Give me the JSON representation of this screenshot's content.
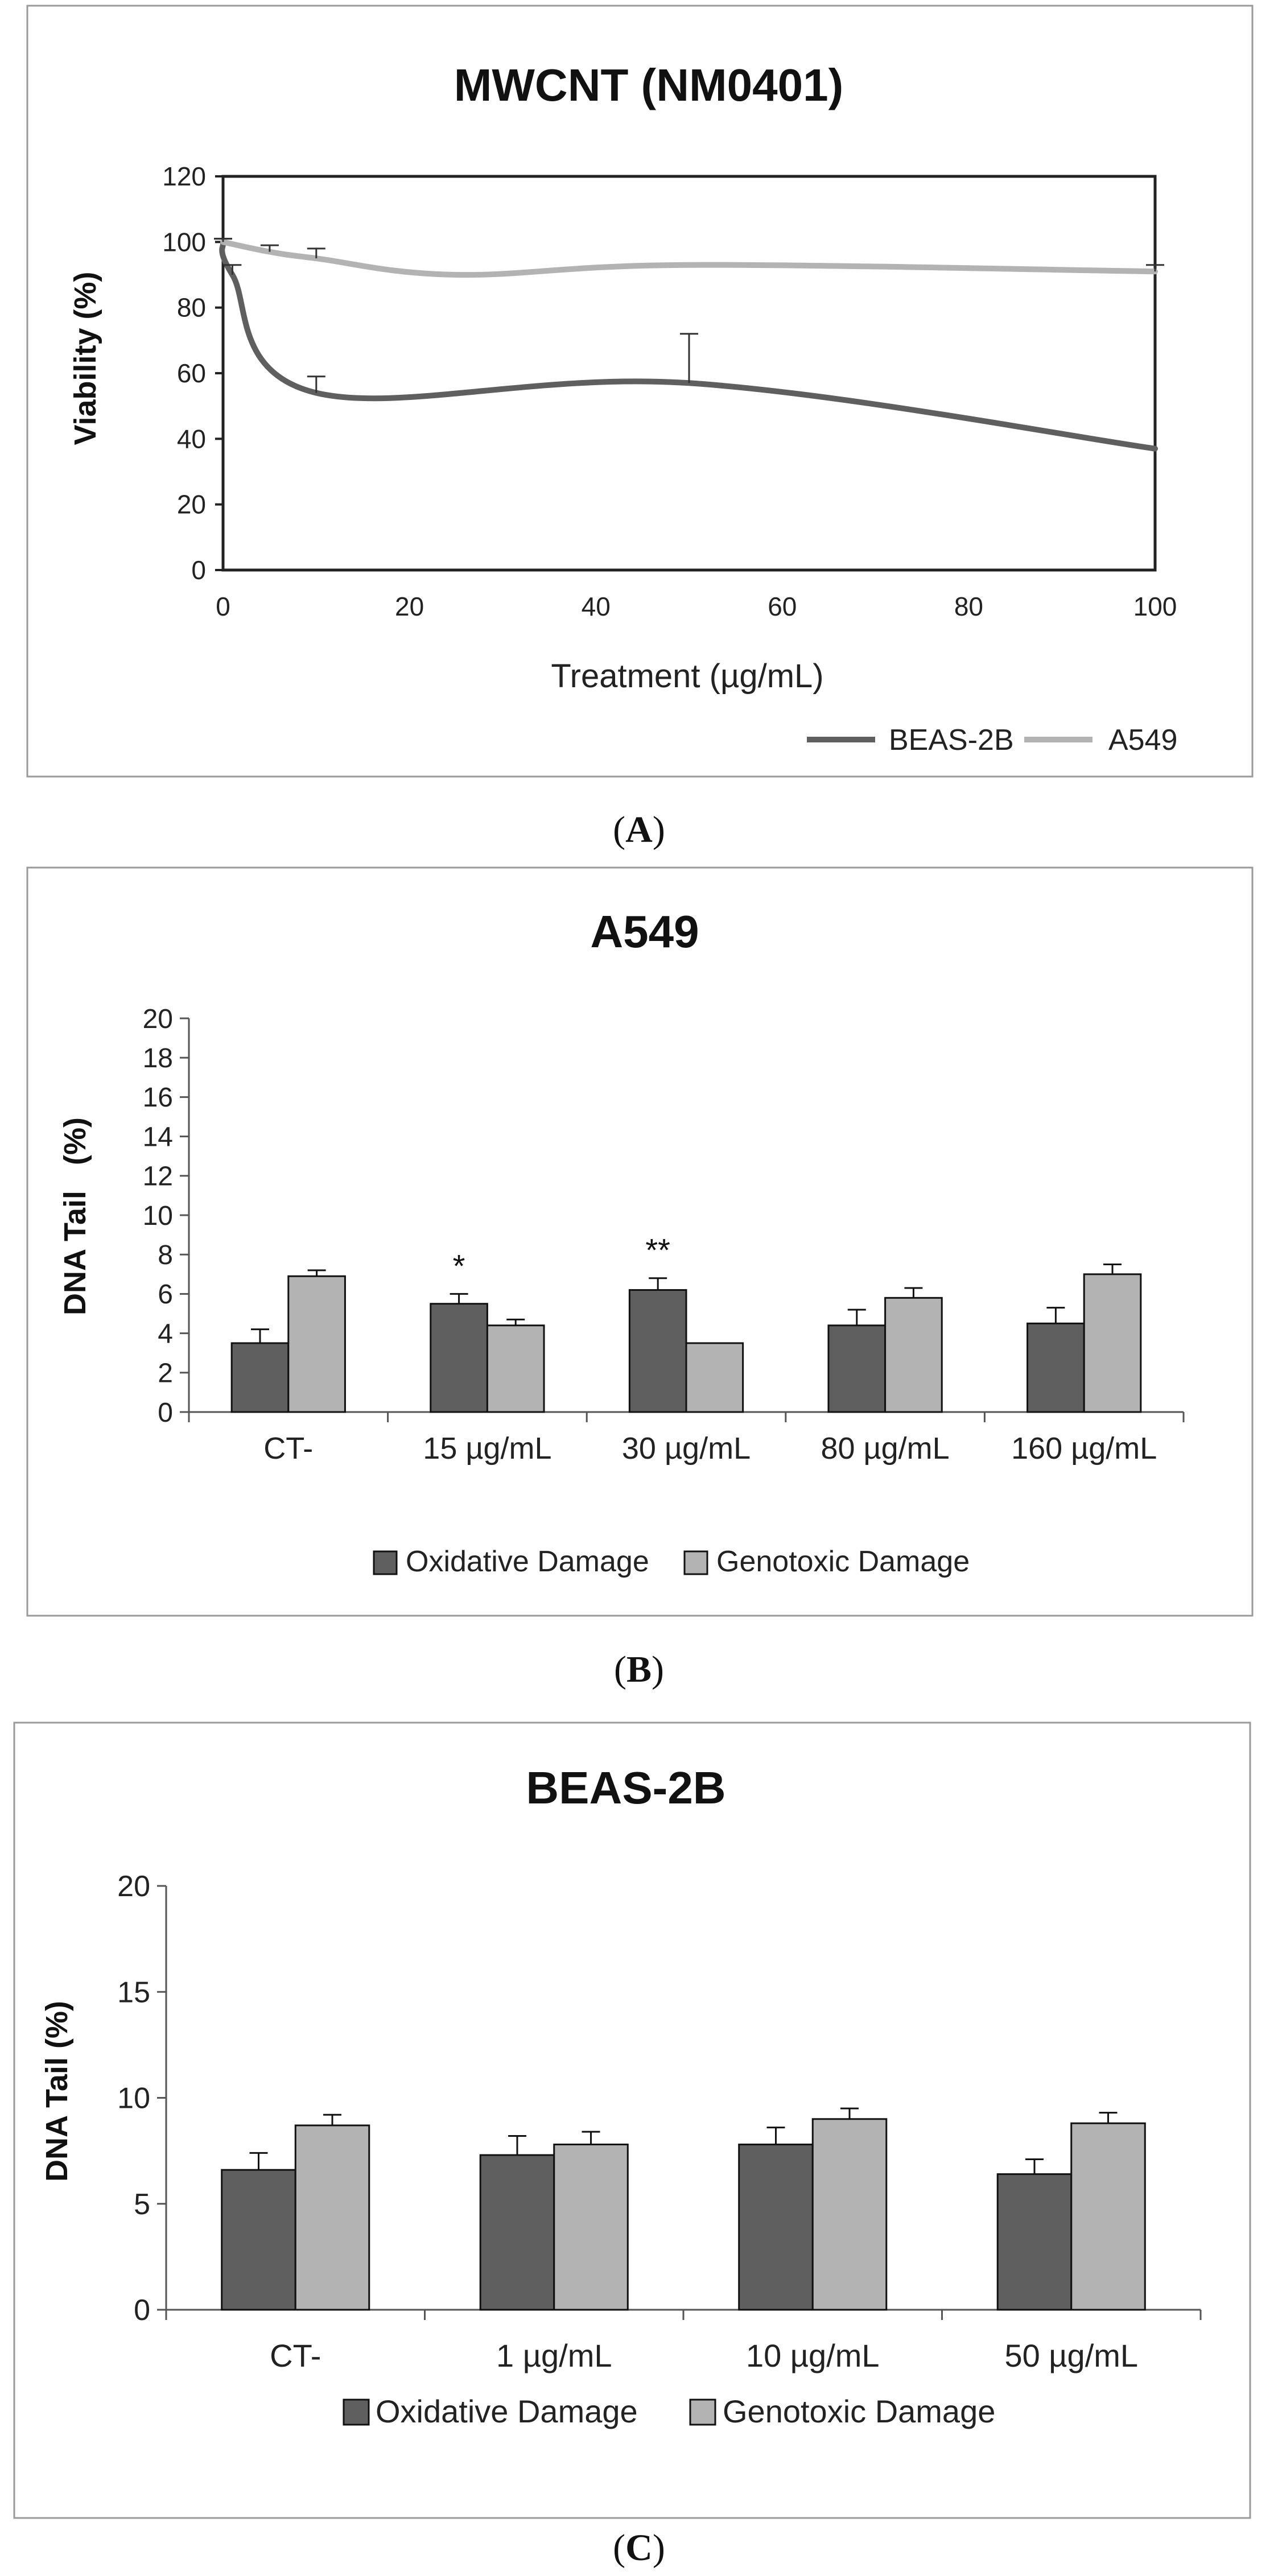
{
  "panels": [
    {
      "label": "A",
      "open": "(",
      "close": ")"
    },
    {
      "label": "B",
      "open": "(",
      "close": ")"
    },
    {
      "label": "C",
      "open": "(",
      "close": ")"
    }
  ],
  "colors": {
    "dark": "#5f5f5f",
    "light": "#b3b3b3",
    "frame": "#9a9a9a",
    "axis": "#222222"
  },
  "chart_data": [
    {
      "id": "A",
      "type": "line",
      "title": "MWCNT (NM0401)",
      "xlabel": "Treatment (µg/mL)",
      "ylabel": "Viability (%)",
      "xlim": [
        0,
        100
      ],
      "ylim": [
        0,
        120
      ],
      "xticks": [
        0,
        20,
        40,
        60,
        80,
        100
      ],
      "yticks": [
        0,
        20,
        40,
        60,
        80,
        100,
        120
      ],
      "legend_position": "bottom-right",
      "series": [
        {
          "name": "BEAS-2B",
          "color": "#5f5f5f",
          "x": [
            0,
            1,
            10,
            50,
            100
          ],
          "y": [
            100,
            90,
            54,
            57,
            37
          ],
          "err": [
            1,
            3,
            5,
            15,
            0
          ]
        },
        {
          "name": "A549",
          "color": "#b3b3b3",
          "x": [
            0,
            5,
            10,
            25,
            50,
            100
          ],
          "y": [
            100,
            97,
            95,
            90,
            93,
            91
          ],
          "err": [
            1,
            2,
            3,
            0,
            0,
            2
          ]
        }
      ]
    },
    {
      "id": "B",
      "type": "bar",
      "title": "A549",
      "ylabel": "DNA Tail   (%)",
      "ylim": [
        0,
        20
      ],
      "yticks": [
        0,
        2,
        4,
        6,
        8,
        10,
        12,
        14,
        16,
        18,
        20
      ],
      "categories": [
        "CT-",
        "15 µg/mL",
        "30 µg/mL",
        "80 µg/mL",
        "160 µg/mL"
      ],
      "legend_position": "bottom",
      "series": [
        {
          "name": "Oxidative Damage",
          "color": "#5f5f5f",
          "values": [
            3.5,
            5.5,
            6.2,
            4.4,
            4.5
          ],
          "err": [
            0.7,
            0.5,
            0.6,
            0.8,
            0.8
          ]
        },
        {
          "name": "Genotoxic Damage",
          "color": "#b3b3b3",
          "values": [
            6.9,
            4.4,
            3.5,
            5.8,
            7.0
          ],
          "err": [
            0.3,
            0.3,
            0,
            0.5,
            0.5
          ]
        }
      ],
      "annotations": [
        {
          "category": 1,
          "series": 0,
          "text": "*"
        },
        {
          "category": 2,
          "series": 0,
          "text": "**"
        }
      ]
    },
    {
      "id": "C",
      "type": "bar",
      "title": "BEAS-2B",
      "ylabel": "DNA Tail (%)",
      "ylim": [
        0,
        20
      ],
      "yticks": [
        0,
        5,
        10,
        15,
        20
      ],
      "categories": [
        "CT-",
        "1 µg/mL",
        "10 µg/mL",
        "50 µg/mL"
      ],
      "legend_position": "bottom",
      "series": [
        {
          "name": "Oxidative Damage",
          "color": "#5f5f5f",
          "values": [
            6.6,
            7.3,
            7.8,
            6.4
          ],
          "err": [
            0.8,
            0.9,
            0.8,
            0.7
          ]
        },
        {
          "name": "Genotoxic Damage",
          "color": "#b3b3b3",
          "values": [
            8.7,
            7.8,
            9.0,
            8.8
          ],
          "err": [
            0.5,
            0.6,
            0.5,
            0.5
          ]
        }
      ]
    }
  ]
}
